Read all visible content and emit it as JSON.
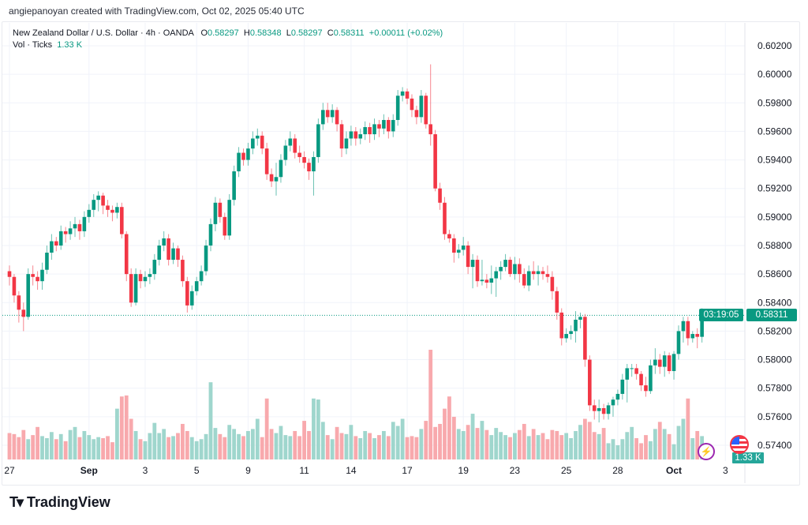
{
  "caption": "angiepanoyan created with TradingView.com, Oct 02, 2025 05:40 UTC",
  "legend": {
    "symbol": "New Zealand Dollar / U.S. Dollar · 4h · OANDA",
    "o_label": "O",
    "o": "0.58297",
    "h_label": "H",
    "h": "0.58348",
    "l_label": "L",
    "l": "0.58297",
    "c_label": "C",
    "c": "0.58311",
    "change": "+0.00011 (+0.02%)",
    "vol_label": "Vol · Ticks",
    "vol": "1.33 K"
  },
  "last_price": {
    "price": "0.58311",
    "countdown": "03:19:05",
    "value": 0.58311
  },
  "volume_tag": "1.33 K",
  "colors": {
    "up": "#089981",
    "down": "#f23645",
    "vol_up": "#9fd6cd",
    "vol_down": "#f8a9ad",
    "grid": "#f0f3fa"
  },
  "icons": [
    "lightning-event-icon",
    "us-flag-event-icon"
  ],
  "logo": "TradingView",
  "chart_data": {
    "type": "candlestick",
    "title": "New Zealand Dollar / U.S. Dollar · 4h · OANDA",
    "ylim": [
      0.5734,
      0.6026
    ],
    "price_ticks": [
      "0.60200",
      "0.60000",
      "0.59800",
      "0.59600",
      "0.59400",
      "0.59200",
      "0.59000",
      "0.58800",
      "0.58600",
      "0.58400",
      "0.58200",
      "0.58000",
      "0.57800",
      "0.57600",
      "0.57400"
    ],
    "time_ticks": [
      {
        "label": "27",
        "bar": 0
      },
      {
        "label": "Sep",
        "bar": 17
      },
      {
        "label": "3",
        "bar": 29
      },
      {
        "label": "5",
        "bar": 40
      },
      {
        "label": "9",
        "bar": 51
      },
      {
        "label": "11",
        "bar": 63
      },
      {
        "label": "14",
        "bar": 73
      },
      {
        "label": "17",
        "bar": 85
      },
      {
        "label": "19",
        "bar": 97
      },
      {
        "label": "23",
        "bar": 108
      },
      {
        "label": "25",
        "bar": 119
      },
      {
        "label": "28",
        "bar": 130
      },
      {
        "label": "Oct",
        "bar": 142
      },
      {
        "label": "3",
        "bar": 153
      }
    ],
    "bars_total_slots": 160,
    "ohlc": [
      [
        0.5862,
        0.5866,
        0.5852,
        0.5858
      ],
      [
        0.5858,
        0.586,
        0.584,
        0.5845
      ],
      [
        0.5845,
        0.5848,
        0.5826,
        0.5835
      ],
      [
        0.5835,
        0.584,
        0.582,
        0.583
      ],
      [
        0.583,
        0.5864,
        0.5828,
        0.586
      ],
      [
        0.586,
        0.5866,
        0.5852,
        0.5858
      ],
      [
        0.5858,
        0.5862,
        0.5849,
        0.5855
      ],
      [
        0.5855,
        0.5868,
        0.5849,
        0.5863
      ],
      [
        0.5863,
        0.588,
        0.586,
        0.5875
      ],
      [
        0.5875,
        0.5888,
        0.587,
        0.5883
      ],
      [
        0.5883,
        0.5886,
        0.5876,
        0.588
      ],
      [
        0.588,
        0.5894,
        0.5877,
        0.589
      ],
      [
        0.589,
        0.5893,
        0.5882,
        0.5888
      ],
      [
        0.5888,
        0.5897,
        0.5884,
        0.5892
      ],
      [
        0.5892,
        0.59,
        0.5886,
        0.5895
      ],
      [
        0.5895,
        0.5898,
        0.5884,
        0.589
      ],
      [
        0.589,
        0.5904,
        0.5886,
        0.59
      ],
      [
        0.59,
        0.5909,
        0.5896,
        0.5905
      ],
      [
        0.5905,
        0.5916,
        0.59,
        0.5912
      ],
      [
        0.5912,
        0.5918,
        0.5904,
        0.5915
      ],
      [
        0.5915,
        0.5917,
        0.5902,
        0.5908
      ],
      [
        0.5908,
        0.5912,
        0.59,
        0.5905
      ],
      [
        0.5905,
        0.5908,
        0.5897,
        0.5903
      ],
      [
        0.5903,
        0.591,
        0.5899,
        0.5907
      ],
      [
        0.5907,
        0.591,
        0.5885,
        0.5888
      ],
      [
        0.5888,
        0.589,
        0.5855,
        0.586
      ],
      [
        0.586,
        0.5864,
        0.5837,
        0.584
      ],
      [
        0.584,
        0.5864,
        0.5838,
        0.586
      ],
      [
        0.586,
        0.5863,
        0.585,
        0.5855
      ],
      [
        0.5855,
        0.5862,
        0.5851,
        0.5858
      ],
      [
        0.5858,
        0.5864,
        0.5853,
        0.586
      ],
      [
        0.586,
        0.5874,
        0.5856,
        0.587
      ],
      [
        0.587,
        0.5884,
        0.5866,
        0.588
      ],
      [
        0.588,
        0.589,
        0.5876,
        0.5885
      ],
      [
        0.5885,
        0.5888,
        0.5866,
        0.587
      ],
      [
        0.587,
        0.5882,
        0.5867,
        0.5878
      ],
      [
        0.5878,
        0.588,
        0.5865,
        0.587
      ],
      [
        0.587,
        0.5873,
        0.5851,
        0.5855
      ],
      [
        0.5855,
        0.5858,
        0.5833,
        0.5838
      ],
      [
        0.5838,
        0.5852,
        0.5835,
        0.5848
      ],
      [
        0.5848,
        0.5858,
        0.5845,
        0.5855
      ],
      [
        0.5855,
        0.5866,
        0.5852,
        0.5862
      ],
      [
        0.5862,
        0.5884,
        0.5859,
        0.588
      ],
      [
        0.588,
        0.5899,
        0.5876,
        0.5895
      ],
      [
        0.5895,
        0.5914,
        0.589,
        0.591
      ],
      [
        0.591,
        0.5913,
        0.5896,
        0.59
      ],
      [
        0.59,
        0.5903,
        0.5884,
        0.5887
      ],
      [
        0.5887,
        0.5916,
        0.5884,
        0.5912
      ],
      [
        0.5912,
        0.5936,
        0.5908,
        0.5932
      ],
      [
        0.5932,
        0.5949,
        0.5928,
        0.5945
      ],
      [
        0.5945,
        0.5948,
        0.5936,
        0.594
      ],
      [
        0.594,
        0.5952,
        0.5936,
        0.5948
      ],
      [
        0.5948,
        0.596,
        0.5944,
        0.5955
      ],
      [
        0.5955,
        0.5962,
        0.595,
        0.5957
      ],
      [
        0.5957,
        0.596,
        0.5944,
        0.5948
      ],
      [
        0.5948,
        0.5952,
        0.5926,
        0.593
      ],
      [
        0.593,
        0.5934,
        0.5921,
        0.5925
      ],
      [
        0.5925,
        0.5938,
        0.5915,
        0.5928
      ],
      [
        0.5928,
        0.5944,
        0.5924,
        0.594
      ],
      [
        0.594,
        0.5954,
        0.5936,
        0.595
      ],
      [
        0.595,
        0.596,
        0.5946,
        0.5955
      ],
      [
        0.5955,
        0.5958,
        0.5941,
        0.5945
      ],
      [
        0.5945,
        0.595,
        0.5938,
        0.5942
      ],
      [
        0.5942,
        0.5946,
        0.5934,
        0.5938
      ],
      [
        0.5938,
        0.5941,
        0.5926,
        0.5932
      ],
      [
        0.5932,
        0.5946,
        0.5915,
        0.5942
      ],
      [
        0.5942,
        0.5969,
        0.5938,
        0.5965
      ],
      [
        0.5965,
        0.598,
        0.5961,
        0.5975
      ],
      [
        0.5975,
        0.598,
        0.5966,
        0.597
      ],
      [
        0.597,
        0.5979,
        0.5966,
        0.5975
      ],
      [
        0.5975,
        0.5977,
        0.596,
        0.5965
      ],
      [
        0.5965,
        0.5968,
        0.5942,
        0.5948
      ],
      [
        0.5948,
        0.596,
        0.5944,
        0.5955
      ],
      [
        0.5955,
        0.5964,
        0.595,
        0.596
      ],
      [
        0.596,
        0.5963,
        0.595,
        0.5955
      ],
      [
        0.5955,
        0.5962,
        0.5951,
        0.5958
      ],
      [
        0.5958,
        0.5967,
        0.5954,
        0.5963
      ],
      [
        0.5963,
        0.5966,
        0.5952,
        0.5958
      ],
      [
        0.5958,
        0.5969,
        0.5954,
        0.5965
      ],
      [
        0.5965,
        0.5968,
        0.5956,
        0.5962
      ],
      [
        0.5962,
        0.5972,
        0.5958,
        0.5968
      ],
      [
        0.5968,
        0.597,
        0.5955,
        0.596
      ],
      [
        0.596,
        0.5972,
        0.5956,
        0.5968
      ],
      [
        0.5968,
        0.5989,
        0.5964,
        0.5985
      ],
      [
        0.5985,
        0.5991,
        0.5981,
        0.5988
      ],
      [
        0.5988,
        0.599,
        0.5979,
        0.5983
      ],
      [
        0.5983,
        0.5986,
        0.597,
        0.5975
      ],
      [
        0.5975,
        0.5978,
        0.5965,
        0.597
      ],
      [
        0.597,
        0.5989,
        0.5966,
        0.5985
      ],
      [
        0.5985,
        0.5987,
        0.5962,
        0.5965
      ],
      [
        0.5965,
        0.6007,
        0.595,
        0.5958
      ],
      [
        0.5958,
        0.5961,
        0.5918,
        0.592
      ],
      [
        0.592,
        0.5924,
        0.5905,
        0.591
      ],
      [
        0.591,
        0.5914,
        0.5884,
        0.5888
      ],
      [
        0.5888,
        0.5891,
        0.5882,
        0.5885
      ],
      [
        0.5885,
        0.5888,
        0.5868,
        0.5875
      ],
      [
        0.5875,
        0.5881,
        0.5871,
        0.5877
      ],
      [
        0.5877,
        0.5886,
        0.5873,
        0.588
      ],
      [
        0.588,
        0.5883,
        0.586,
        0.5865
      ],
      [
        0.5865,
        0.5874,
        0.585,
        0.587
      ],
      [
        0.587,
        0.5873,
        0.5851,
        0.5855
      ],
      [
        0.5855,
        0.587,
        0.5852,
        0.5856
      ],
      [
        0.5856,
        0.586,
        0.585,
        0.5854
      ],
      [
        0.5854,
        0.5866,
        0.5846,
        0.5857
      ],
      [
        0.5857,
        0.5865,
        0.5844,
        0.5862
      ],
      [
        0.5862,
        0.5869,
        0.5856,
        0.5865
      ],
      [
        0.5865,
        0.5874,
        0.5862,
        0.587
      ],
      [
        0.587,
        0.5872,
        0.5858,
        0.586
      ],
      [
        0.586,
        0.5872,
        0.5856,
        0.5867
      ],
      [
        0.5867,
        0.5871,
        0.5854,
        0.586
      ],
      [
        0.586,
        0.5864,
        0.585,
        0.5852
      ],
      [
        0.5852,
        0.5866,
        0.5848,
        0.5862
      ],
      [
        0.5862,
        0.5869,
        0.5856,
        0.586
      ],
      [
        0.586,
        0.5866,
        0.5852,
        0.5862
      ],
      [
        0.5862,
        0.5865,
        0.5856,
        0.586
      ],
      [
        0.586,
        0.5866,
        0.5854,
        0.5858
      ],
      [
        0.5858,
        0.5862,
        0.5842,
        0.5848
      ],
      [
        0.5848,
        0.5851,
        0.5828,
        0.5833
      ],
      [
        0.5833,
        0.5836,
        0.581,
        0.5815
      ],
      [
        0.5815,
        0.5822,
        0.5812,
        0.5818
      ],
      [
        0.5818,
        0.5824,
        0.5814,
        0.582
      ],
      [
        0.582,
        0.5834,
        0.5812,
        0.5828
      ],
      [
        0.5828,
        0.5833,
        0.5822,
        0.583
      ],
      [
        0.583,
        0.5832,
        0.5795,
        0.58
      ],
      [
        0.58,
        0.5803,
        0.5764,
        0.5768
      ],
      [
        0.5768,
        0.5772,
        0.5758,
        0.5764
      ],
      [
        0.5764,
        0.5772,
        0.5756,
        0.5766
      ],
      [
        0.5766,
        0.5769,
        0.5758,
        0.5762
      ],
      [
        0.5762,
        0.577,
        0.5758,
        0.5768
      ],
      [
        0.5768,
        0.5774,
        0.576,
        0.5772
      ],
      [
        0.5772,
        0.5779,
        0.5768,
        0.5776
      ],
      [
        0.5776,
        0.579,
        0.5772,
        0.5786
      ],
      [
        0.5786,
        0.5797,
        0.577,
        0.5794
      ],
      [
        0.5794,
        0.5797,
        0.5788,
        0.5794
      ],
      [
        0.5794,
        0.5797,
        0.5786,
        0.579
      ],
      [
        0.579,
        0.5792,
        0.5778,
        0.5782
      ],
      [
        0.5782,
        0.5788,
        0.5774,
        0.5778
      ],
      [
        0.5778,
        0.58,
        0.5776,
        0.5796
      ],
      [
        0.5796,
        0.5808,
        0.579,
        0.58
      ],
      [
        0.58,
        0.5804,
        0.579,
        0.5795
      ],
      [
        0.5795,
        0.5806,
        0.5788,
        0.5803
      ],
      [
        0.5803,
        0.5805,
        0.579,
        0.5792
      ],
      [
        0.5792,
        0.5806,
        0.5786,
        0.5804
      ],
      [
        0.5804,
        0.5824,
        0.58,
        0.582
      ],
      [
        0.582,
        0.583,
        0.5812,
        0.5827
      ],
      [
        0.5827,
        0.583,
        0.581,
        0.5815
      ],
      [
        0.5815,
        0.582,
        0.5812,
        0.5818
      ],
      [
        0.5818,
        0.5822,
        0.5808,
        0.5816
      ],
      [
        0.5816,
        0.5836,
        0.5812,
        0.583
      ],
      [
        0.58297,
        0.58348,
        0.58297,
        0.58311
      ]
    ],
    "volume": [
      2600,
      2500,
      2200,
      2900,
      2000,
      2400,
      3200,
      2300,
      2100,
      2700,
      2000,
      2500,
      1800,
      2900,
      3200,
      2200,
      2800,
      2400,
      2000,
      2200,
      2100,
      2300,
      1700,
      5000,
      6200,
      6300,
      4000,
      2800,
      2000,
      1800,
      2600,
      3600,
      2600,
      3000,
      2200,
      2300,
      2600,
      3500,
      2800,
      2200,
      1800,
      2000,
      2500,
      7600,
      3100,
      2500,
      2200,
      3400,
      3000,
      2500,
      2300,
      2800,
      3000,
      4000,
      2200,
      6000,
      3000,
      2600,
      3300,
      2400,
      2300,
      2800,
      2300,
      3800,
      2800,
      6000,
      5900,
      3700,
      2400,
      2000,
      3200,
      2600,
      2500,
      3400,
      2300,
      2100,
      2800,
      2600,
      2100,
      2400,
      2800,
      2300,
      3700,
      3300,
      4000,
      2200,
      2300,
      2200,
      3000,
      3800,
      10800,
      3200,
      3500,
      5000,
      6200,
      4200,
      3000,
      2800,
      3400,
      4500,
      3100,
      3800,
      2900,
      2400,
      3100,
      2700,
      2400,
      2200,
      2600,
      2900,
      3500,
      2300,
      3000,
      2400,
      2600,
      2000,
      2900,
      2800,
      2400,
      2600,
      2100,
      2800,
      3400,
      4000,
      3700,
      2700,
      2500,
      3100,
      1600,
      2000,
      1400,
      2000,
      2700,
      3200,
      2100,
      1600,
      2400,
      1800,
      3000,
      3700,
      3000,
      2500,
      1500,
      3300,
      4000,
      6000,
      2100,
      2800,
      2300,
      1330
    ],
    "volume_max": 10800
  }
}
